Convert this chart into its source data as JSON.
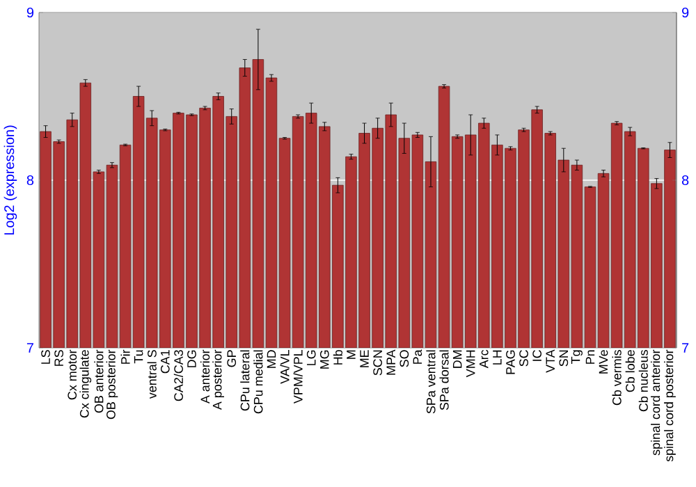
{
  "chart_data": {
    "type": "bar",
    "ylabel": "Log2 (expression)",
    "categories": [
      "LS",
      "RS",
      "Cx motor",
      "Cx cingulate",
      "OB anterior",
      "OB posterior",
      "Pir",
      "Tu",
      "ventral S",
      "CA1",
      "CA2/CA3",
      "DG",
      "A anterior",
      "A posterior",
      "GP",
      "CPu lateral",
      "CPu medial",
      "MD",
      "VA/VL",
      "VPM/VPL",
      "LG",
      "MG",
      "Hb",
      "M",
      "ME",
      "SCN",
      "MPA",
      "SO",
      "Pa",
      "SPa ventral",
      "SPa dorsal",
      "DM",
      "VMH",
      "Arc",
      "LH",
      "PAG",
      "SC",
      "IC",
      "VTA",
      "SN",
      "Tg",
      "Pn",
      "MVe",
      "Cb vermis",
      "Cb lobe",
      "Cb nucleus",
      "spinal cord anterior",
      "spinal cord posterior"
    ],
    "values": [
      8.29,
      8.23,
      8.36,
      8.58,
      8.05,
      8.09,
      8.21,
      8.5,
      8.37,
      8.3,
      8.4,
      8.39,
      8.43,
      8.5,
      8.38,
      8.67,
      8.72,
      8.61,
      8.25,
      8.38,
      8.4,
      8.32,
      7.97,
      8.14,
      8.28,
      8.31,
      8.39,
      8.25,
      8.27,
      8.11,
      8.56,
      8.26,
      8.27,
      8.34,
      8.21,
      8.19,
      8.3,
      8.42,
      8.28,
      8.12,
      8.09,
      7.96,
      8.04,
      8.34,
      8.29,
      8.19,
      7.98,
      8.18
    ],
    "errors": [
      0.035,
      0.01,
      0.04,
      0.02,
      0.01,
      0.015,
      0.005,
      0.06,
      0.045,
      0.005,
      0.005,
      0.005,
      0.01,
      0.02,
      0.045,
      0.05,
      0.18,
      0.02,
      0.005,
      0.01,
      0.06,
      0.025,
      0.045,
      0.015,
      0.06,
      0.06,
      0.07,
      0.09,
      0.015,
      0.15,
      0.01,
      0.01,
      0.12,
      0.03,
      0.06,
      0.01,
      0.01,
      0.02,
      0.01,
      0.07,
      0.03,
      0.003,
      0.02,
      0.01,
      0.025,
      0.003,
      0.03,
      0.045
    ],
    "color": "#b03434",
    "ylim": [
      7,
      9
    ],
    "yticks": [
      7,
      8,
      9
    ],
    "y2lim": [
      7,
      9
    ],
    "y2ticks": [
      7,
      8,
      9
    ],
    "grid": "y"
  }
}
